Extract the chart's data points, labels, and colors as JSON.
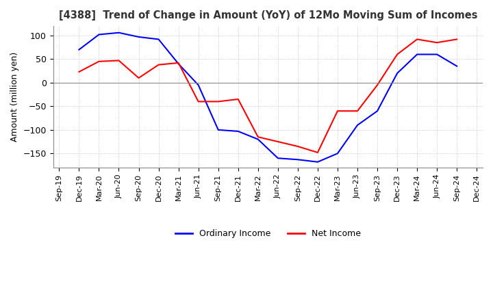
{
  "title": "[4388]  Trend of Change in Amount (YoY) of 12Mo Moving Sum of Incomes",
  "ylabel": "Amount (million yen)",
  "ylim": [
    -180,
    120
  ],
  "yticks": [
    -150,
    -100,
    -50,
    0,
    50,
    100
  ],
  "background_color": "#ffffff",
  "grid_color": "#aaaaaa",
  "legend_labels": [
    "Ordinary Income",
    "Net Income"
  ],
  "line_colors": [
    "#0000ff",
    "#ff0000"
  ],
  "x_labels": [
    "Sep-19",
    "Dec-19",
    "Mar-20",
    "Jun-20",
    "Sep-20",
    "Dec-20",
    "Mar-21",
    "Jun-21",
    "Sep-21",
    "Dec-21",
    "Mar-22",
    "Jun-22",
    "Sep-22",
    "Dec-22",
    "Mar-23",
    "Jun-23",
    "Sep-23",
    "Dec-23",
    "Mar-24",
    "Jun-24",
    "Sep-24",
    "Dec-24"
  ],
  "ordinary_income": [
    null,
    70,
    102,
    106,
    97,
    92,
    40,
    -5,
    -100,
    -103,
    -120,
    -160,
    -163,
    -168,
    -150,
    -90,
    -60,
    20,
    60,
    60,
    35,
    null
  ],
  "net_income": [
    null,
    23,
    45,
    47,
    10,
    38,
    42,
    -40,
    -40,
    -35,
    -115,
    -125,
    -135,
    -148,
    -60,
    -60,
    -5,
    60,
    92,
    85,
    92,
    null
  ]
}
